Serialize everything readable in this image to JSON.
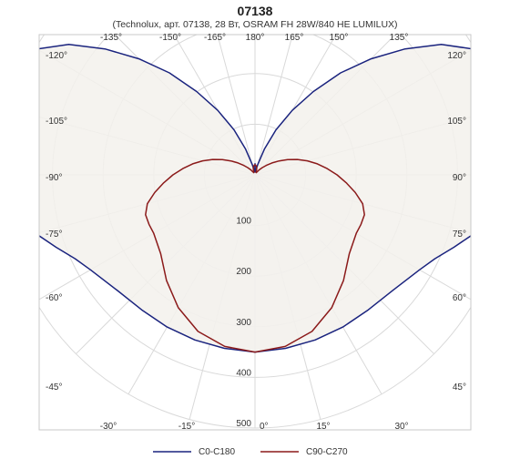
{
  "chart": {
    "title": "07138",
    "subtitle": "(Technolux, арт. 07138, 28 Вт, OSRAM FH 28W/840 HE LUMILUX)"
  },
  "colors": {
    "grid": "#d9d9d9",
    "frame": "#c8c8c8",
    "fill": "#f3f1ec",
    "c0": "#1a237e",
    "c90": "#8b1a1a"
  },
  "chart_data": {
    "type": "polar",
    "title": "07138",
    "subtitle": "(Technolux, арт. 07138, 28 Вт, OSRAM FH 28W/840 HE LUMILUX)",
    "r_max": 500,
    "r_ticks": [
      100,
      200,
      300,
      400,
      500
    ],
    "angle_ticks": [
      {
        "angle": -135,
        "label": "-135°"
      },
      {
        "angle": -150,
        "label": "-150°"
      },
      {
        "angle": -165,
        "label": "-165°"
      },
      {
        "angle": 180,
        "label": "180°"
      },
      {
        "angle": 165,
        "label": "165°"
      },
      {
        "angle": 150,
        "label": "150°"
      },
      {
        "angle": 135,
        "label": "135°"
      },
      {
        "angle": -120,
        "label": "-120°"
      },
      {
        "angle": 120,
        "label": "120°"
      },
      {
        "angle": -105,
        "label": "-105°"
      },
      {
        "angle": 105,
        "label": "105°"
      },
      {
        "angle": -90,
        "label": "-90°"
      },
      {
        "angle": 90,
        "label": "90°"
      },
      {
        "angle": -75,
        "label": "-75°"
      },
      {
        "angle": 75,
        "label": "75°"
      },
      {
        "angle": -60,
        "label": "-60°"
      },
      {
        "angle": 60,
        "label": "60°"
      },
      {
        "angle": -45,
        "label": "-45°"
      },
      {
        "angle": 45,
        "label": "45°"
      },
      {
        "angle": -30,
        "label": "-30°"
      },
      {
        "angle": 30,
        "label": "30°"
      },
      {
        "angle": -15,
        "label": "-15°"
      },
      {
        "angle": 15,
        "label": "15°"
      },
      {
        "angle": 0,
        "label": "0°"
      }
    ],
    "series": [
      {
        "name": "C0-C180",
        "angles": [
          0,
          10,
          20,
          30,
          40,
          50,
          60,
          65,
          70,
          75,
          80,
          85,
          90,
          95,
          100,
          105,
          110,
          115,
          120,
          125,
          130,
          135,
          140,
          145,
          150,
          155,
          160,
          165,
          170,
          175,
          180
        ],
        "values": [
          350,
          348,
          347,
          347,
          348,
          355,
          375,
          392,
          418,
          448,
          482,
          488,
          497,
          493,
          478,
          462,
          475,
          520,
          497,
          449,
          387,
          324,
          263,
          201,
          147,
          98,
          54,
          21,
          8,
          6,
          22
        ]
      },
      {
        "name": "C90-C270",
        "angles": [
          0,
          10,
          20,
          30,
          40,
          50,
          60,
          65,
          70,
          75,
          80,
          85,
          90,
          95,
          100,
          105,
          110,
          115,
          120,
          125,
          130,
          135,
          140,
          145,
          150,
          155,
          160,
          165,
          170,
          175,
          180
        ],
        "values": [
          350,
          344,
          329,
          303,
          272,
          243,
          231,
          231,
          230,
          220,
          201,
          181,
          162,
          143,
          125,
          107,
          89,
          71,
          55,
          41,
          29,
          20,
          13,
          8,
          5,
          5,
          8,
          13,
          17,
          19,
          20
        ]
      }
    ]
  }
}
